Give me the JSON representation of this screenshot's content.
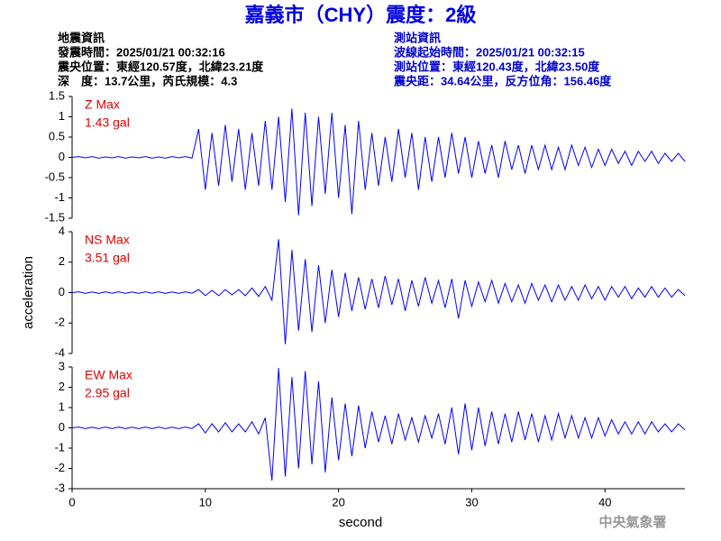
{
  "header": {
    "title": "嘉義市（CHY）震度：2級",
    "left": [
      "地震資訊",
      "發震時間：2025/01/21 00:32:16",
      "震央位置：東經120.57度，北緯23.21度",
      "深　度：13.7公里，芮氏規模：4.3"
    ],
    "right": [
      "測站資訊",
      "波線起始時間：2025/01/21 00:32:15",
      "測站位置：東經120.43度，北緯23.50度",
      "震央距：34.64公里，反方位角：156.46度"
    ],
    "footer": "中央氣象署"
  },
  "chart_data": [
    {
      "type": "line",
      "annotations": [
        "Z Max",
        "1.43 gal"
      ],
      "color": "#0000ff",
      "xlim": [
        0,
        46
      ],
      "ylim": [
        -1.5,
        1.5
      ],
      "yticks": [
        -1.5,
        -1,
        -0.5,
        0,
        0.5,
        1,
        1.5
      ],
      "x": [
        0,
        0.5,
        1,
        1.5,
        2,
        2.5,
        3,
        3.5,
        4,
        4.5,
        5,
        5.5,
        6,
        6.5,
        7,
        7.5,
        8,
        8.5,
        9,
        9.5,
        10,
        10.5,
        11,
        11.5,
        12,
        12.5,
        13,
        13.5,
        14,
        14.5,
        15,
        15.5,
        16,
        16.5,
        17,
        17.5,
        18,
        18.5,
        19,
        19.5,
        20,
        20.5,
        21,
        21.5,
        22,
        22.5,
        23,
        23.5,
        24,
        24.5,
        25,
        25.5,
        26,
        26.5,
        27,
        27.5,
        28,
        28.5,
        29,
        29.5,
        30,
        30.5,
        31,
        31.5,
        32,
        32.5,
        33,
        33.5,
        34,
        34.5,
        35,
        35.5,
        36,
        36.5,
        37,
        37.5,
        38,
        38.5,
        39,
        39.5,
        40,
        40.5,
        41,
        41.5,
        42,
        42.5,
        43,
        43.5,
        44,
        44.5,
        45,
        45.5,
        46
      ],
      "values": [
        0,
        0.02,
        -0.01,
        0.02,
        -0.02,
        0.01,
        -0.01,
        0.02,
        -0.02,
        0.01,
        -0.01,
        0.02,
        -0.02,
        0.01,
        -0.02,
        0.02,
        -0.01,
        0.02,
        -0.02,
        0.7,
        -0.8,
        0.6,
        -0.7,
        0.8,
        -0.6,
        0.7,
        -0.8,
        0.6,
        -0.7,
        0.9,
        -0.8,
        1.0,
        -1.1,
        1.2,
        -1.43,
        1.1,
        -1.2,
        1.0,
        -0.9,
        1.1,
        -1.0,
        0.8,
        -1.4,
        0.9,
        -0.8,
        0.6,
        -0.7,
        0.5,
        -0.6,
        0.7,
        -0.5,
        0.6,
        -0.8,
        0.5,
        -0.6,
        0.5,
        -0.5,
        0.6,
        -0.4,
        0.5,
        -0.5,
        0.4,
        -0.4,
        0.3,
        -0.5,
        0.4,
        -0.3,
        0.3,
        -0.4,
        0.3,
        -0.3,
        0.3,
        -0.3,
        0.25,
        -0.3,
        0.3,
        -0.2,
        0.25,
        -0.25,
        0.2,
        -0.2,
        0.2,
        -0.15,
        0.15,
        -0.2,
        0.15,
        -0.1,
        0.15,
        -0.15,
        0.1,
        -0.1,
        0.1,
        -0.1
      ]
    },
    {
      "type": "line",
      "annotations": [
        "NS Max",
        "3.51 gal"
      ],
      "color": "#0000ff",
      "ylabel": "acceleration",
      "xlim": [
        0,
        46
      ],
      "ylim": [
        -4,
        4
      ],
      "yticks": [
        -4,
        -2,
        0,
        2,
        4
      ],
      "x": [
        0,
        0.5,
        1,
        1.5,
        2,
        2.5,
        3,
        3.5,
        4,
        4.5,
        5,
        5.5,
        6,
        6.5,
        7,
        7.5,
        8,
        8.5,
        9,
        9.5,
        10,
        10.5,
        11,
        11.5,
        12,
        12.5,
        13,
        13.5,
        14,
        14.5,
        15,
        15.5,
        16,
        16.5,
        17,
        17.5,
        18,
        18.5,
        19,
        19.5,
        20,
        20.5,
        21,
        21.5,
        22,
        22.5,
        23,
        23.5,
        24,
        24.5,
        25,
        25.5,
        26,
        26.5,
        27,
        27.5,
        28,
        28.5,
        29,
        29.5,
        30,
        30.5,
        31,
        31.5,
        32,
        32.5,
        33,
        33.5,
        34,
        34.5,
        35,
        35.5,
        36,
        36.5,
        37,
        37.5,
        38,
        38.5,
        39,
        39.5,
        40,
        40.5,
        41,
        41.5,
        42,
        42.5,
        43,
        43.5,
        44,
        44.5,
        45,
        45.5,
        46
      ],
      "values": [
        0,
        0.05,
        -0.05,
        0.04,
        -0.05,
        0.05,
        -0.04,
        0.05,
        -0.05,
        0.04,
        -0.05,
        0.05,
        -0.04,
        0.05,
        -0.05,
        0.04,
        -0.05,
        0.05,
        -0.04,
        0.2,
        -0.2,
        0.15,
        -0.2,
        0.2,
        -0.15,
        0.2,
        -0.2,
        0.3,
        -0.25,
        0.4,
        -0.5,
        3.51,
        -3.4,
        2.8,
        -2.5,
        2.2,
        -2.6,
        1.8,
        -2.0,
        1.5,
        -1.6,
        1.3,
        -1.2,
        1.0,
        -1.1,
        0.9,
        -1.0,
        1.1,
        -0.8,
        0.9,
        -1.2,
        0.8,
        -0.9,
        1.0,
        -0.7,
        0.8,
        -1.0,
        0.9,
        -1.7,
        0.8,
        -0.9,
        0.7,
        -0.6,
        0.8,
        -0.7,
        0.6,
        -0.6,
        0.5,
        -0.7,
        0.6,
        -0.5,
        0.5,
        -0.6,
        0.5,
        -0.5,
        0.4,
        -0.5,
        0.5,
        -0.4,
        0.4,
        -0.5,
        0.4,
        -0.3,
        0.4,
        -0.4,
        0.3,
        -0.3,
        0.4,
        -0.3,
        0.3,
        -0.3,
        0.2,
        -0.2
      ]
    },
    {
      "type": "line",
      "annotations": [
        "EW Max",
        "2.95 gal"
      ],
      "color": "#0000ff",
      "xlabel": "second",
      "xlim": [
        0,
        46
      ],
      "ylim": [
        -3,
        3
      ],
      "yticks": [
        -3,
        -2,
        -1,
        0,
        1,
        2,
        3
      ],
      "xticks": [
        0,
        10,
        20,
        30,
        40
      ],
      "x": [
        0,
        0.5,
        1,
        1.5,
        2,
        2.5,
        3,
        3.5,
        4,
        4.5,
        5,
        5.5,
        6,
        6.5,
        7,
        7.5,
        8,
        8.5,
        9,
        9.5,
        10,
        10.5,
        11,
        11.5,
        12,
        12.5,
        13,
        13.5,
        14,
        14.5,
        15,
        15.5,
        16,
        16.5,
        17,
        17.5,
        18,
        18.5,
        19,
        19.5,
        20,
        20.5,
        21,
        21.5,
        22,
        22.5,
        23,
        23.5,
        24,
        24.5,
        25,
        25.5,
        26,
        26.5,
        27,
        27.5,
        28,
        28.5,
        29,
        29.5,
        30,
        30.5,
        31,
        31.5,
        32,
        32.5,
        33,
        33.5,
        34,
        34.5,
        35,
        35.5,
        36,
        36.5,
        37,
        37.5,
        38,
        38.5,
        39,
        39.5,
        40,
        40.5,
        41,
        41.5,
        42,
        42.5,
        43,
        43.5,
        44,
        44.5,
        45,
        45.5,
        46
      ],
      "values": [
        0,
        0.04,
        -0.04,
        0.03,
        -0.04,
        0.04,
        -0.03,
        0.04,
        -0.04,
        0.03,
        -0.04,
        0.04,
        -0.03,
        0.04,
        -0.04,
        0.03,
        -0.04,
        0.04,
        -0.03,
        0.2,
        -0.25,
        0.2,
        -0.2,
        0.25,
        -0.2,
        0.2,
        -0.2,
        0.3,
        -0.3,
        0.5,
        -2.6,
        2.95,
        -2.4,
        2.5,
        -2.0,
        2.8,
        -1.8,
        2.3,
        -2.2,
        1.5,
        -1.6,
        1.2,
        -1.4,
        1.1,
        -1.0,
        0.8,
        -0.7,
        0.6,
        -0.8,
        0.7,
        -0.6,
        0.5,
        -0.7,
        0.6,
        -0.5,
        0.7,
        -0.8,
        1.0,
        -1.3,
        1.2,
        -1.1,
        1.0,
        -0.9,
        0.8,
        -0.8,
        0.7,
        -0.7,
        0.8,
        -0.6,
        0.7,
        -0.7,
        0.6,
        -0.6,
        0.7,
        -0.5,
        0.6,
        -0.5,
        0.5,
        -0.5,
        0.5,
        -0.4,
        0.4,
        -0.3,
        0.3,
        -0.3,
        0.3,
        -0.3,
        0.3,
        -0.2,
        0.2,
        -0.2,
        0.2,
        -0.1
      ]
    }
  ]
}
